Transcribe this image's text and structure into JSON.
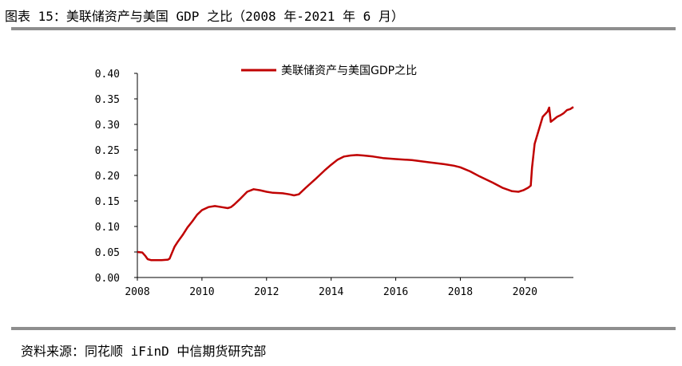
{
  "header": {
    "title": "图表 15：美联储资产与美国 GDP 之比（2008 年-2021 年 6 月）"
  },
  "footer": {
    "source": "资料来源：同花顺 iFinD 中信期货研究部"
  },
  "colors": {
    "series": "#c00000",
    "rule": "#8e8e8e",
    "axis": "#000000"
  },
  "chart_data": {
    "type": "line",
    "title": "",
    "xlabel": "",
    "ylabel": "",
    "xlim": [
      2008,
      2021.5
    ],
    "ylim": [
      0,
      0.4
    ],
    "grid": false,
    "legend_position": "top",
    "x_ticks": [
      2008,
      2010,
      2012,
      2014,
      2016,
      2018,
      2020
    ],
    "x_tick_labels": [
      "2008",
      "2010",
      "2012",
      "2014",
      "2016",
      "2018",
      "2020"
    ],
    "y_ticks": [
      0,
      0.05,
      0.1,
      0.15,
      0.2,
      0.25,
      0.3,
      0.35,
      0.4
    ],
    "y_tick_labels": [
      "0.00",
      "0.05",
      "0.10",
      "0.15",
      "0.20",
      "0.25",
      "0.30",
      "0.35",
      "0.40"
    ],
    "series": [
      {
        "name": "美联储资产与美国GDP之比",
        "color": "#c00000",
        "x": [
          2008.0,
          2008.15,
          2008.25,
          2008.32,
          2008.42,
          2008.55,
          2008.75,
          2008.95,
          2009.0,
          2009.05,
          2009.15,
          2009.25,
          2009.4,
          2009.55,
          2009.7,
          2009.85,
          2010.0,
          2010.2,
          2010.4,
          2010.6,
          2010.8,
          2010.9,
          2011.0,
          2011.2,
          2011.4,
          2011.6,
          2011.8,
          2012.0,
          2012.2,
          2012.5,
          2012.7,
          2012.85,
          2013.0,
          2013.2,
          2013.5,
          2013.8,
          2014.0,
          2014.2,
          2014.4,
          2014.6,
          2014.8,
          2015.0,
          2015.3,
          2015.6,
          2016.0,
          2016.5,
          2017.0,
          2017.5,
          2017.8,
          2018.0,
          2018.3,
          2018.6,
          2019.0,
          2019.3,
          2019.6,
          2019.8,
          2019.95,
          2020.1,
          2020.18,
          2020.22,
          2020.3,
          2020.4,
          2020.55,
          2020.7,
          2020.75,
          2020.8,
          2020.9,
          2021.0,
          2021.1,
          2021.2,
          2021.3,
          2021.4,
          2021.5
        ],
        "values": [
          0.05,
          0.049,
          0.042,
          0.036,
          0.034,
          0.034,
          0.034,
          0.035,
          0.037,
          0.045,
          0.06,
          0.07,
          0.083,
          0.098,
          0.11,
          0.123,
          0.132,
          0.138,
          0.14,
          0.138,
          0.136,
          0.138,
          0.143,
          0.155,
          0.168,
          0.173,
          0.171,
          0.168,
          0.166,
          0.165,
          0.163,
          0.161,
          0.163,
          0.175,
          0.192,
          0.21,
          0.221,
          0.231,
          0.237,
          0.239,
          0.24,
          0.239,
          0.237,
          0.234,
          0.232,
          0.23,
          0.226,
          0.222,
          0.219,
          0.216,
          0.208,
          0.198,
          0.186,
          0.176,
          0.169,
          0.168,
          0.171,
          0.176,
          0.18,
          0.215,
          0.262,
          0.283,
          0.315,
          0.325,
          0.333,
          0.305,
          0.31,
          0.315,
          0.318,
          0.322,
          0.328,
          0.33,
          0.334
        ]
      }
    ]
  }
}
